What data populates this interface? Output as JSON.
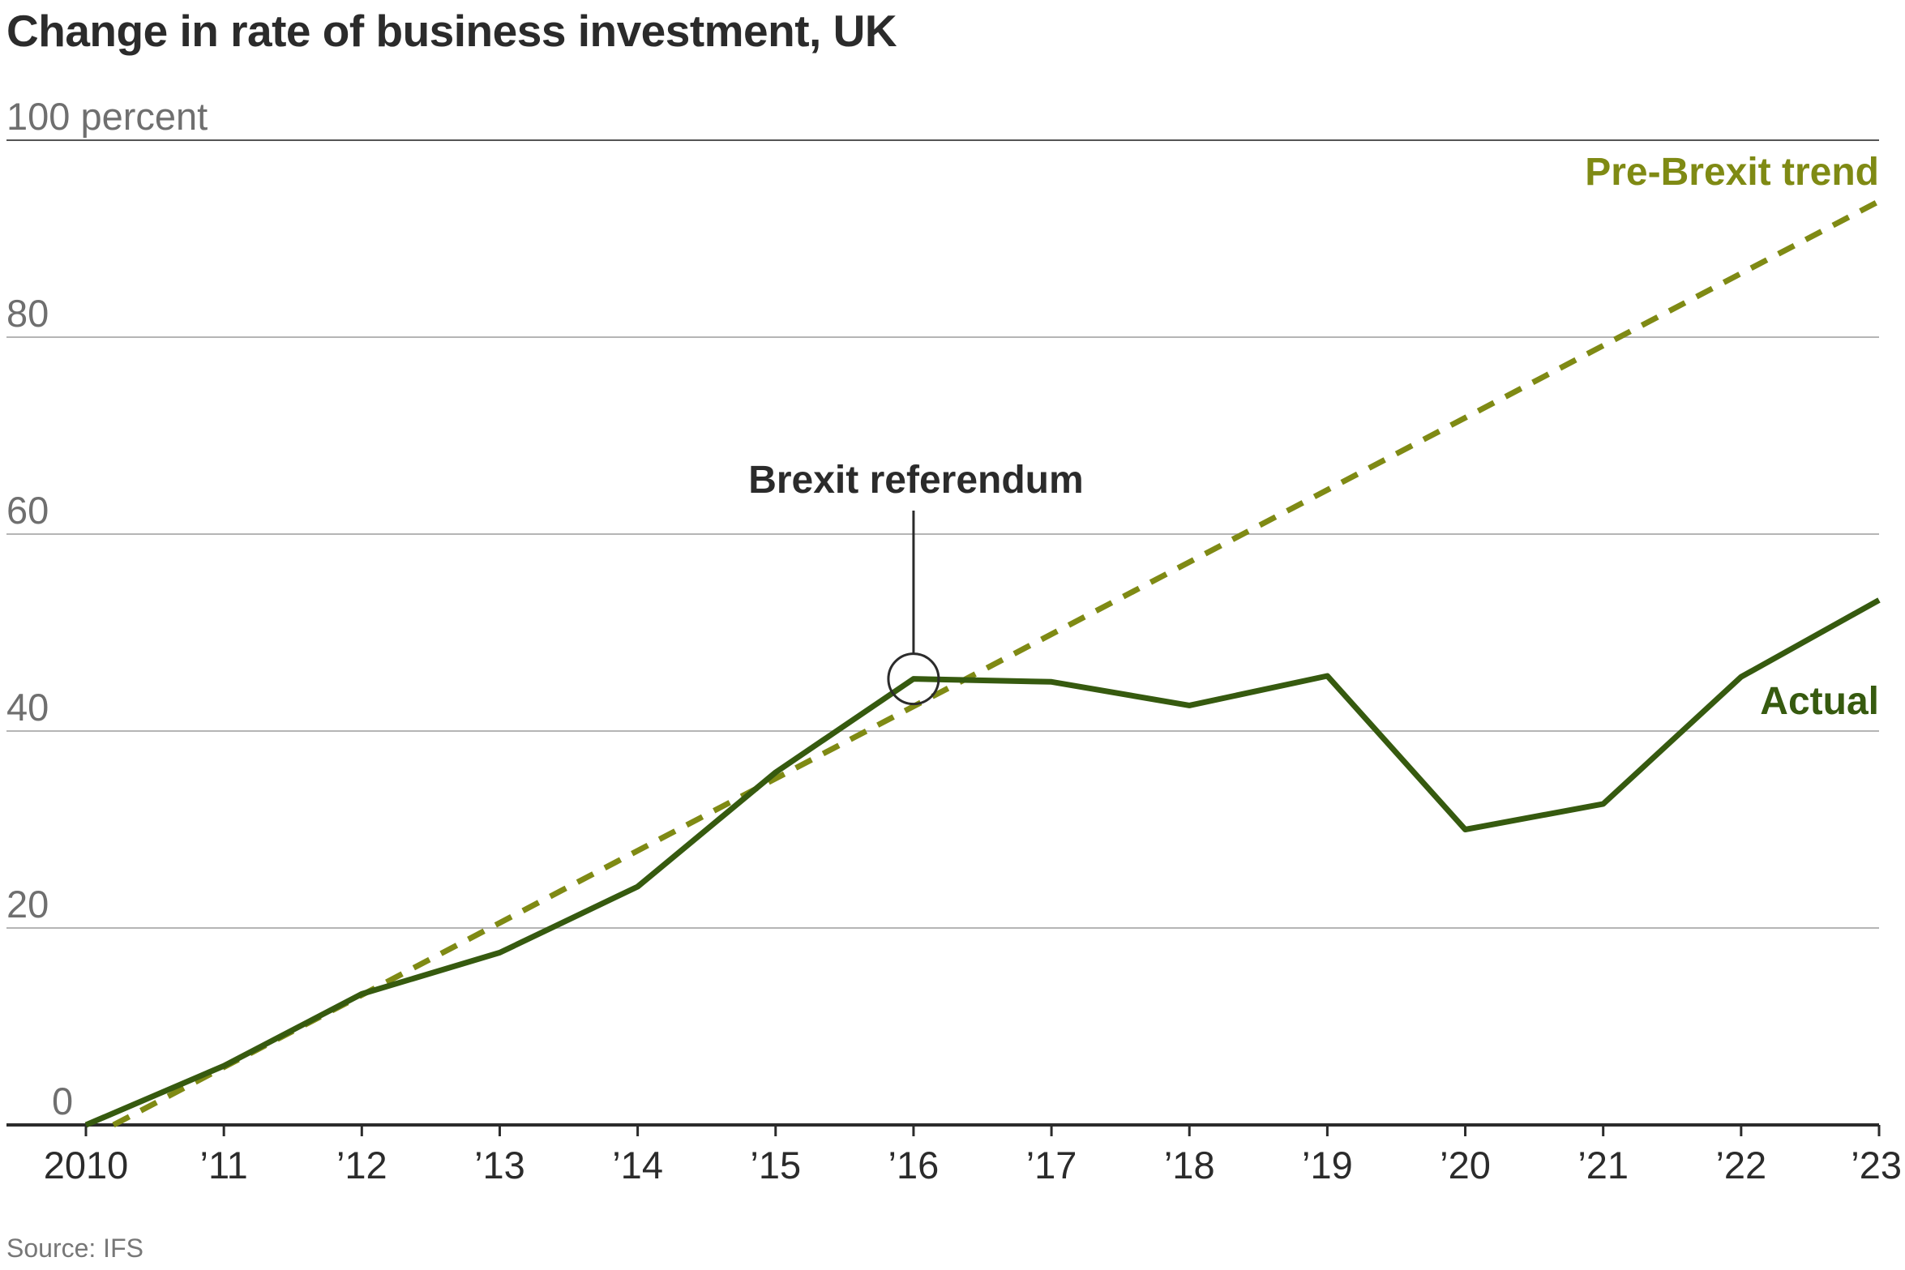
{
  "chart_data": {
    "type": "line",
    "title": "Change in rate of business investment, UK",
    "ylabel": "",
    "y_unit_label": "100 percent",
    "ylim": [
      0,
      100
    ],
    "y_ticks": [
      {
        "value": 0,
        "label": "0"
      },
      {
        "value": 20,
        "label": "20"
      },
      {
        "value": 40,
        "label": "40"
      },
      {
        "value": 60,
        "label": "60"
      },
      {
        "value": 80,
        "label": "80"
      },
      {
        "value": 100,
        "label": "100 percent"
      }
    ],
    "x_ticks": [
      {
        "value": 2010,
        "label": "2010"
      },
      {
        "value": 2011,
        "label": "’11"
      },
      {
        "value": 2012,
        "label": "’12"
      },
      {
        "value": 2013,
        "label": "’13"
      },
      {
        "value": 2014,
        "label": "’14"
      },
      {
        "value": 2015,
        "label": "’15"
      },
      {
        "value": 2016,
        "label": "’16"
      },
      {
        "value": 2017,
        "label": "’17"
      },
      {
        "value": 2018,
        "label": "’18"
      },
      {
        "value": 2019,
        "label": "’19"
      },
      {
        "value": 2020,
        "label": "’20"
      },
      {
        "value": 2021,
        "label": "’21"
      },
      {
        "value": 2022,
        "label": "’22"
      },
      {
        "value": 2023,
        "label": "’23"
      }
    ],
    "xlim": [
      2010,
      2023
    ],
    "grid": true,
    "series": [
      {
        "name": "Actual",
        "color": "#365a0f",
        "style": "solid",
        "x": [
          2010,
          2011,
          2012,
          2013,
          2014,
          2015,
          2016,
          2017,
          2018,
          2019,
          2020,
          2021,
          2022,
          2023
        ],
        "y": [
          0,
          6,
          13.3,
          17.5,
          24.2,
          35.8,
          45.3,
          45,
          42.6,
          45.6,
          30,
          32.6,
          45.5,
          53.3
        ]
      },
      {
        "name": "Pre-Brexit trend",
        "color": "#7f8a14",
        "style": "dashed",
        "x": [
          2010.2,
          2023
        ],
        "y": [
          0,
          93.8
        ]
      }
    ],
    "annotations": [
      {
        "text": "Brexit referendum",
        "x": 2016,
        "y": 45.3
      }
    ],
    "source": "Source: IFS"
  }
}
